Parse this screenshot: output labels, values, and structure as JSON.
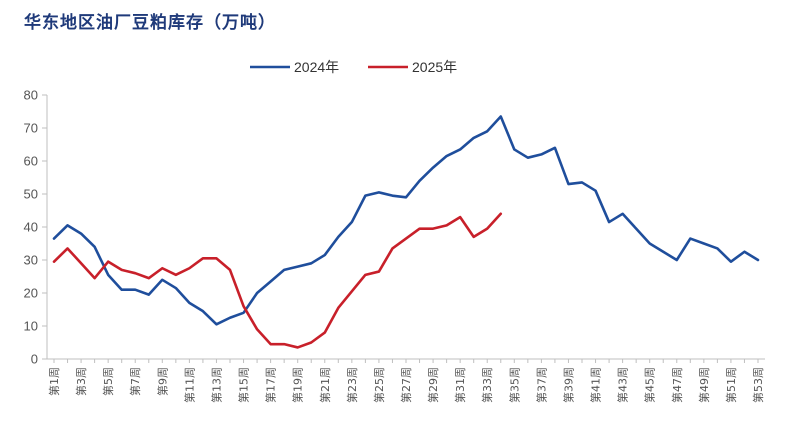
{
  "chart_data": {
    "type": "line",
    "title": "华东地区油厂豆粕库存（万吨）",
    "xlabel": "",
    "ylabel": "",
    "ylim": [
      0,
      80
    ],
    "yticks": [
      0,
      10,
      20,
      30,
      40,
      50,
      60,
      70,
      80
    ],
    "x_tick_labels": [
      "第1周",
      "第3周",
      "第5周",
      "第7周",
      "第9周",
      "第11周",
      "第13周",
      "第15周",
      "第17周",
      "第19周",
      "第21周",
      "第23周",
      "第25周",
      "第27周",
      "第29周",
      "第31周",
      "第33周",
      "第35周",
      "第37周",
      "第39周",
      "第41周",
      "第43周",
      "第45周",
      "第47周",
      "第49周",
      "第51周",
      "第53周"
    ],
    "grid": false,
    "legend_position": "top-center",
    "series": [
      {
        "name": "2024年",
        "color": "#1f4e9c",
        "values": [
          36.5,
          40.5,
          38,
          34,
          25.5,
          21,
          21,
          19.5,
          24,
          21.5,
          17,
          14.5,
          10.5,
          12.5,
          14,
          20,
          23.5,
          27,
          28,
          29,
          31.5,
          37,
          41.5,
          49.5,
          50.5,
          49.5,
          49,
          54,
          58,
          61.5,
          63.5,
          67,
          69,
          73.5,
          63.5,
          61,
          62,
          64,
          53,
          53.5,
          51,
          41.5,
          44,
          39.5,
          35,
          32.5,
          30,
          36.5,
          35,
          33.5,
          29.5,
          32.5,
          30
        ]
      },
      {
        "name": "2025年",
        "color": "#c8202a",
        "values": [
          29.5,
          33.5,
          29,
          24.5,
          29.5,
          27,
          26,
          24.5,
          27.5,
          25.5,
          27.5,
          30.5,
          30.5,
          27,
          16,
          9,
          4.5,
          4.5,
          3.5,
          5,
          8,
          15.5,
          20.5,
          25.5,
          26.5,
          33.5,
          36.5,
          39.5,
          39.5,
          40.5,
          43,
          37,
          39.5,
          44
        ]
      }
    ]
  }
}
